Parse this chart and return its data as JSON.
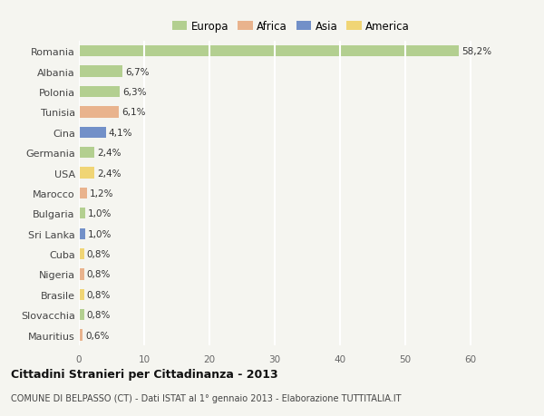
{
  "categories": [
    "Romania",
    "Albania",
    "Polonia",
    "Tunisia",
    "Cina",
    "Germania",
    "USA",
    "Marocco",
    "Bulgaria",
    "Sri Lanka",
    "Cuba",
    "Nigeria",
    "Brasile",
    "Slovacchia",
    "Mauritius"
  ],
  "values": [
    58.2,
    6.7,
    6.3,
    6.1,
    4.1,
    2.4,
    2.4,
    1.2,
    1.0,
    1.0,
    0.8,
    0.8,
    0.8,
    0.8,
    0.6
  ],
  "labels": [
    "58,2%",
    "6,7%",
    "6,3%",
    "6,1%",
    "4,1%",
    "2,4%",
    "2,4%",
    "1,2%",
    "1,0%",
    "1,0%",
    "0,8%",
    "0,8%",
    "0,8%",
    "0,8%",
    "0,6%"
  ],
  "continent": [
    "Europa",
    "Europa",
    "Europa",
    "Africa",
    "Asia",
    "Europa",
    "America",
    "Africa",
    "Europa",
    "Asia",
    "America",
    "Africa",
    "America",
    "Europa",
    "Africa"
  ],
  "colors": {
    "Europa": "#a8c97f",
    "Africa": "#e8a87c",
    "Asia": "#5b7fc1",
    "America": "#f0d060"
  },
  "legend_order": [
    "Europa",
    "Africa",
    "Asia",
    "America"
  ],
  "title": "Cittadini Stranieri per Cittadinanza - 2013",
  "subtitle": "COMUNE DI BELPASSO (CT) - Dati ISTAT al 1° gennaio 2013 - Elaborazione TUTTITALIA.IT",
  "xlim": [
    0,
    65
  ],
  "xticks": [
    0,
    10,
    20,
    30,
    40,
    50,
    60
  ],
  "background_color": "#f5f5f0",
  "grid_color": "#ffffff",
  "bar_height": 0.55
}
